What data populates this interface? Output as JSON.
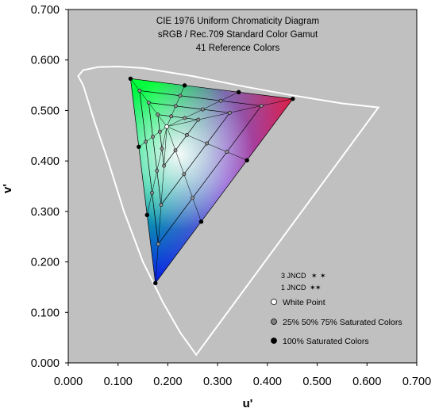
{
  "chart_data": {
    "type": "scatter",
    "title_lines": [
      "CIE 1976 Uniform Chromaticity Diagram",
      "sRGB / Rec.709 Standard Color Gamut",
      "41 Reference Colors"
    ],
    "xlabel": "u'",
    "ylabel": "v'",
    "xlim": [
      0,
      0.7
    ],
    "ylim": [
      0,
      0.7
    ],
    "xticks": [
      "0.000",
      "0.100",
      "0.200",
      "0.300",
      "0.400",
      "0.500",
      "0.600",
      "0.700"
    ],
    "yticks": [
      "0.000",
      "0.100",
      "0.200",
      "0.300",
      "0.400",
      "0.500",
      "0.600",
      "0.700"
    ],
    "grid": false,
    "background_color": "#c0c0c0",
    "locus_color": "#ffffff",
    "spectral_locus": [
      [
        0.257,
        0.016
      ],
      [
        0.225,
        0.06
      ],
      [
        0.19,
        0.12
      ],
      [
        0.15,
        0.2
      ],
      [
        0.112,
        0.3
      ],
      [
        0.08,
        0.4
      ],
      [
        0.052,
        0.48
      ],
      [
        0.03,
        0.55
      ],
      [
        0.02,
        0.568
      ],
      [
        0.03,
        0.58
      ],
      [
        0.06,
        0.586
      ],
      [
        0.1,
        0.587
      ],
      [
        0.15,
        0.584
      ],
      [
        0.25,
        0.568
      ],
      [
        0.35,
        0.548
      ],
      [
        0.45,
        0.53
      ],
      [
        0.55,
        0.514
      ],
      [
        0.623,
        0.506
      ]
    ],
    "primaries": {
      "red": [
        0.451,
        0.523
      ],
      "green": [
        0.125,
        0.563
      ],
      "blue": [
        0.175,
        0.158
      ]
    },
    "white_point": [
      0.198,
      0.468
    ],
    "saturation_levels": [
      "25%",
      "50%",
      "75%",
      "100%"
    ],
    "legend": {
      "jncd": [
        "3 JNCD",
        "1 JNCD"
      ],
      "items": [
        {
          "label": "White Point",
          "color": "#ffffff"
        },
        {
          "label": "25% 50% 75% Saturated Colors",
          "color": "#808080"
        },
        {
          "label": "100% Saturated Colors",
          "color": "#000000"
        }
      ]
    }
  }
}
